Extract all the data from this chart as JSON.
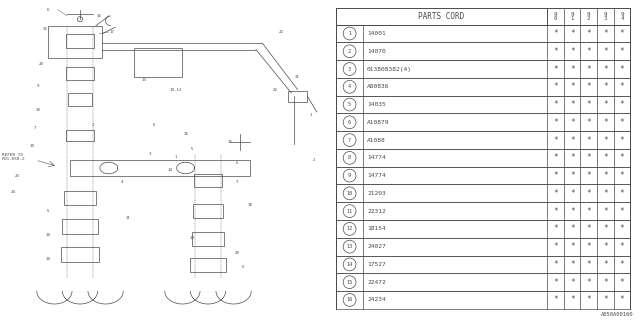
{
  "diagram_code": "A050A00160",
  "table_header": "PARTS CORD",
  "col_headers": [
    "9\n0",
    "9\n1",
    "9\n2",
    "9\n3",
    "9\n4"
  ],
  "parts": [
    {
      "num": 1,
      "code": "14001"
    },
    {
      "num": 2,
      "code": "14070"
    },
    {
      "num": 3,
      "code": "013808382(4)"
    },
    {
      "num": 4,
      "code": "A80836"
    },
    {
      "num": 5,
      "code": "14035"
    },
    {
      "num": 6,
      "code": "A10879"
    },
    {
      "num": 7,
      "code": "A1088"
    },
    {
      "num": 8,
      "code": "14774"
    },
    {
      "num": 9,
      "code": "14774"
    },
    {
      "num": 10,
      "code": "21203"
    },
    {
      "num": 11,
      "code": "22312"
    },
    {
      "num": 12,
      "code": "18154"
    },
    {
      "num": 13,
      "code": "24027"
    },
    {
      "num": 14,
      "code": "17527"
    },
    {
      "num": 15,
      "code": "22472"
    },
    {
      "num": 16,
      "code": "24234"
    }
  ],
  "asterisk": "*",
  "bg_color": "#ffffff",
  "line_color": "#4a4a4a",
  "text_color": "#4a4a4a",
  "font_family": "monospace",
  "refer_text": "REFER TO\nFIG.050-2"
}
